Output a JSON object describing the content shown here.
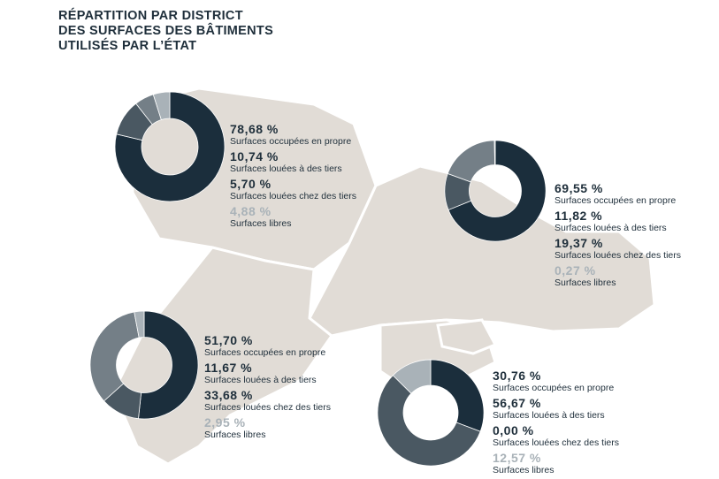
{
  "title": {
    "lines": [
      "RÉPARTITION PAR DISTRICT",
      "DES SURFACES DES BÂTIMENTS",
      "UTILISÉS PAR L’ÉTAT"
    ]
  },
  "colors": {
    "map": "#e1dcd6",
    "map_border": "#ffffff",
    "text_dark": "#1f2f3b",
    "text_light": "#a9b2b8",
    "series": [
      "#1b2e3c",
      "#4a5862",
      "#747f87",
      "#a9b2b8"
    ]
  },
  "chart_data": [
    {
      "type": "pie",
      "labels": [
        "Surfaces occupées en propre",
        "Surfaces louées à des tiers",
        "Surfaces louées chez des tiers",
        "Surfaces libres"
      ],
      "values": [
        78.68,
        10.74,
        5.7,
        4.88
      ],
      "display_values": [
        "78,68 %",
        "10,74 %",
        "5,70 %",
        "4,88 %"
      ]
    },
    {
      "type": "pie",
      "labels": [
        "Surfaces occupées en propre",
        "Surfaces louées à des tiers",
        "Surfaces louées chez des tiers",
        "Surfaces libres"
      ],
      "values": [
        69.55,
        11.82,
        19.37,
        0.27
      ],
      "display_values": [
        "69,55 %",
        "11,82 %",
        "19,37 %",
        "0,27 %"
      ]
    },
    {
      "type": "pie",
      "labels": [
        "Surfaces occupées en propre",
        "Surfaces louées à des tiers",
        "Surfaces louées chez des tiers",
        "Surfaces libres"
      ],
      "values": [
        51.7,
        11.67,
        33.68,
        2.95
      ],
      "display_values": [
        "51,70 %",
        "11,67 %",
        "33,68 %",
        "2,95 %"
      ]
    },
    {
      "type": "pie",
      "labels": [
        "Surfaces occupées en propre",
        "Surfaces louées à des tiers",
        "Surfaces louées chez des tiers",
        "Surfaces libres"
      ],
      "values": [
        30.76,
        56.67,
        0.0,
        12.57
      ],
      "display_values": [
        "30,76 %",
        "56,67 %",
        "0,00 %",
        "12,57 %"
      ]
    }
  ]
}
